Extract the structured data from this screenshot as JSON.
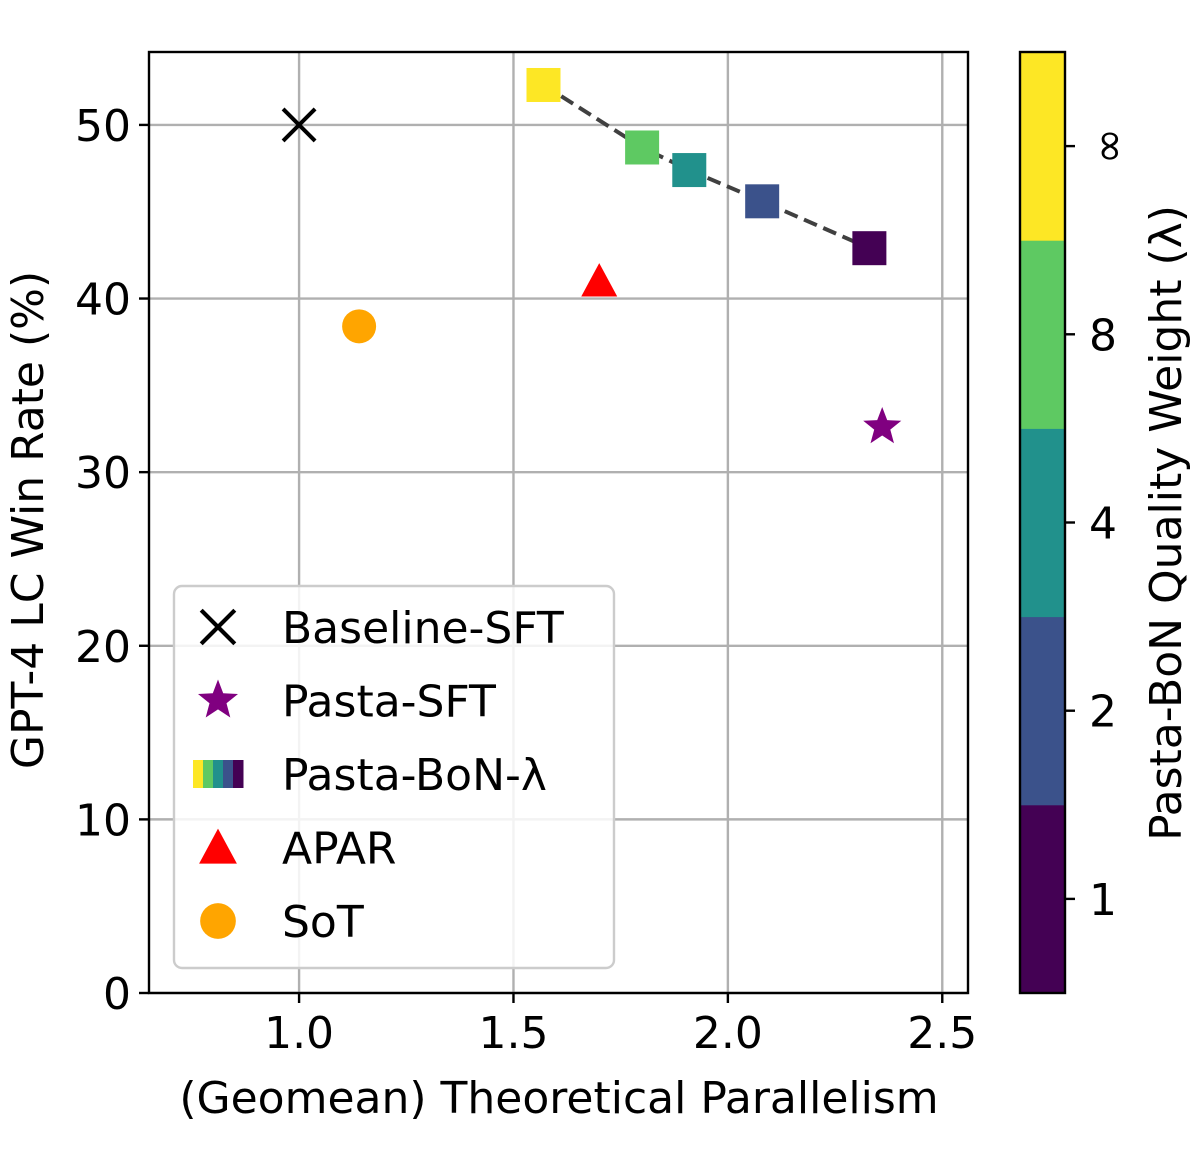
{
  "chart_data": {
    "type": "scatter",
    "xlabel": "(Geomean) Theoretical Parallelism",
    "ylabel": "GPT-4 LC Win Rate (%)",
    "xlim": [
      0.65,
      2.56
    ],
    "ylim": [
      0,
      54.2
    ],
    "x_ticks": [
      1.0,
      1.5,
      2.0,
      2.5
    ],
    "x_tick_labels": [
      "1.0",
      "1.5",
      "2.0",
      "2.5"
    ],
    "y_ticks": [
      0,
      10,
      20,
      30,
      40,
      50
    ],
    "y_tick_labels": [
      "0",
      "10",
      "20",
      "30",
      "40",
      "50"
    ],
    "grid": true,
    "legend_position": "lower-left",
    "series": [
      {
        "name": "Baseline-SFT",
        "marker": "x",
        "color": "#000000",
        "points": [
          {
            "x": 1.0,
            "y": 50.0
          }
        ]
      },
      {
        "name": "Pasta-SFT",
        "marker": "star",
        "color": "#800080",
        "points": [
          {
            "x": 2.36,
            "y": 32.6
          }
        ]
      },
      {
        "name": "Pasta-BoN-λ",
        "marker": "square",
        "colored_by": "Pasta-BoN Quality Weight (λ)",
        "connected_dashed": true,
        "points": [
          {
            "x": 1.57,
            "y": 52.3,
            "lambda": "∞",
            "color": "#fde725"
          },
          {
            "x": 1.8,
            "y": 48.7,
            "lambda": "8",
            "color": "#5ec962"
          },
          {
            "x": 1.91,
            "y": 47.4,
            "lambda": "4",
            "color": "#21918c"
          },
          {
            "x": 2.08,
            "y": 45.6,
            "lambda": "2",
            "color": "#3b528b"
          },
          {
            "x": 2.33,
            "y": 42.9,
            "lambda": "1",
            "color": "#440154"
          }
        ]
      },
      {
        "name": "APAR",
        "marker": "triangle",
        "color": "#ff0000",
        "points": [
          {
            "x": 1.7,
            "y": 41.0
          }
        ]
      },
      {
        "name": "SoT",
        "marker": "circle",
        "color": "#ffa500",
        "points": [
          {
            "x": 1.14,
            "y": 38.4
          }
        ]
      }
    ],
    "colorbar": {
      "label": "Pasta-BoN Quality Weight (λ)",
      "levels": [
        {
          "label": "1",
          "color": "#440154"
        },
        {
          "label": "2",
          "color": "#3b528b"
        },
        {
          "label": "4",
          "color": "#21918c"
        },
        {
          "label": "8",
          "color": "#5ec962"
        },
        {
          "label": "∞",
          "color": "#fde725"
        }
      ]
    }
  }
}
